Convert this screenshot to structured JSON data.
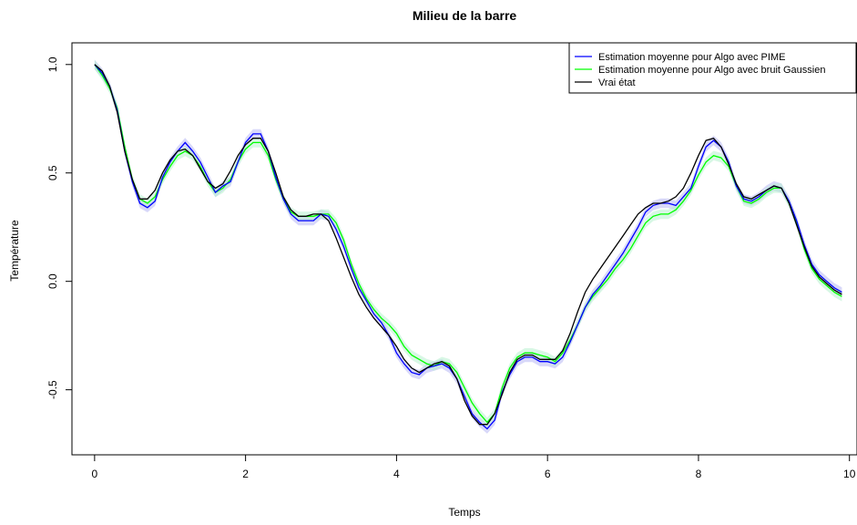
{
  "chart_data": {
    "type": "line",
    "title": "Milieu de la barre",
    "xlabel": "Temps",
    "ylabel": "Température",
    "xlim": [
      -0.3,
      10.1
    ],
    "ylim": [
      -0.8,
      1.1
    ],
    "xticks": [
      0,
      2,
      4,
      6,
      8,
      10
    ],
    "yticks": [
      -0.5,
      0.0,
      0.5,
      1.0
    ],
    "xtick_labels": [
      "0",
      "2",
      "4",
      "6",
      "8",
      "10"
    ],
    "ytick_labels": [
      "-0.5",
      "0.0",
      "0.5",
      "1.0"
    ],
    "grid": false,
    "legend_position": "top-right",
    "x": [
      0,
      0.1,
      0.2,
      0.3,
      0.4,
      0.5,
      0.6,
      0.7,
      0.8,
      0.9,
      1.0,
      1.1,
      1.2,
      1.3,
      1.4,
      1.5,
      1.6,
      1.7,
      1.8,
      1.9,
      2.0,
      2.1,
      2.2,
      2.3,
      2.4,
      2.5,
      2.6,
      2.7,
      2.8,
      2.9,
      3.0,
      3.1,
      3.2,
      3.3,
      3.4,
      3.5,
      3.6,
      3.7,
      3.8,
      3.9,
      4.0,
      4.1,
      4.2,
      4.3,
      4.4,
      4.5,
      4.6,
      4.7,
      4.8,
      4.9,
      5.0,
      5.1,
      5.2,
      5.3,
      5.4,
      5.5,
      5.6,
      5.7,
      5.8,
      5.9,
      6.0,
      6.1,
      6.2,
      6.3,
      6.4,
      6.5,
      6.6,
      6.7,
      6.8,
      6.9,
      7.0,
      7.1,
      7.2,
      7.3,
      7.4,
      7.5,
      7.6,
      7.7,
      7.8,
      7.9,
      8.0,
      8.1,
      8.2,
      8.3,
      8.4,
      8.5,
      8.6,
      8.7,
      8.8,
      8.9,
      9.0,
      9.1,
      9.2,
      9.3,
      9.4,
      9.5,
      9.6,
      9.7,
      9.8,
      9.9
    ],
    "series": [
      {
        "name": "Estimation moyenne pour Algo avec PIME",
        "color": "#0000ff",
        "band_color": "#b8b8f4",
        "values": [
          1.0,
          0.96,
          0.9,
          0.79,
          0.6,
          0.46,
          0.36,
          0.34,
          0.37,
          0.48,
          0.55,
          0.6,
          0.64,
          0.6,
          0.55,
          0.48,
          0.41,
          0.44,
          0.46,
          0.55,
          0.64,
          0.68,
          0.68,
          0.6,
          0.48,
          0.38,
          0.31,
          0.28,
          0.28,
          0.28,
          0.31,
          0.3,
          0.24,
          0.16,
          0.06,
          -0.03,
          -0.09,
          -0.15,
          -0.19,
          -0.25,
          -0.33,
          -0.38,
          -0.42,
          -0.43,
          -0.4,
          -0.39,
          -0.38,
          -0.4,
          -0.45,
          -0.53,
          -0.61,
          -0.65,
          -0.68,
          -0.64,
          -0.51,
          -0.43,
          -0.37,
          -0.35,
          -0.35,
          -0.37,
          -0.37,
          -0.38,
          -0.35,
          -0.28,
          -0.2,
          -0.12,
          -0.06,
          -0.02,
          0.03,
          0.08,
          0.13,
          0.19,
          0.25,
          0.32,
          0.35,
          0.36,
          0.36,
          0.35,
          0.39,
          0.43,
          0.53,
          0.62,
          0.65,
          0.62,
          0.55,
          0.44,
          0.38,
          0.37,
          0.39,
          0.42,
          0.44,
          0.43,
          0.37,
          0.28,
          0.17,
          0.08,
          0.03,
          0.0,
          -0.03,
          -0.05
        ]
      },
      {
        "name": "Estimation moyenne pour Algo avec bruit Gaussien",
        "color": "#00ff00",
        "band_color": "#b8f0d0",
        "values": [
          1.0,
          0.95,
          0.89,
          0.8,
          0.62,
          0.47,
          0.38,
          0.36,
          0.39,
          0.47,
          0.53,
          0.58,
          0.6,
          0.58,
          0.53,
          0.46,
          0.41,
          0.43,
          0.47,
          0.55,
          0.61,
          0.64,
          0.64,
          0.58,
          0.47,
          0.38,
          0.32,
          0.3,
          0.3,
          0.3,
          0.31,
          0.31,
          0.27,
          0.19,
          0.08,
          -0.01,
          -0.08,
          -0.13,
          -0.17,
          -0.2,
          -0.24,
          -0.3,
          -0.34,
          -0.36,
          -0.38,
          -0.39,
          -0.37,
          -0.38,
          -0.42,
          -0.49,
          -0.56,
          -0.61,
          -0.65,
          -0.61,
          -0.49,
          -0.4,
          -0.35,
          -0.33,
          -0.33,
          -0.34,
          -0.35,
          -0.37,
          -0.33,
          -0.27,
          -0.2,
          -0.12,
          -0.07,
          -0.03,
          0.01,
          0.06,
          0.1,
          0.15,
          0.21,
          0.27,
          0.3,
          0.31,
          0.31,
          0.33,
          0.37,
          0.42,
          0.49,
          0.55,
          0.58,
          0.57,
          0.53,
          0.44,
          0.37,
          0.36,
          0.38,
          0.41,
          0.43,
          0.43,
          0.36,
          0.27,
          0.15,
          0.06,
          0.01,
          -0.02,
          -0.05,
          -0.07
        ]
      },
      {
        "name": "Vrai état",
        "color": "#000000",
        "values": [
          1.0,
          0.97,
          0.9,
          0.78,
          0.6,
          0.47,
          0.38,
          0.38,
          0.42,
          0.5,
          0.56,
          0.6,
          0.61,
          0.58,
          0.52,
          0.46,
          0.43,
          0.45,
          0.51,
          0.58,
          0.63,
          0.66,
          0.66,
          0.6,
          0.5,
          0.39,
          0.33,
          0.3,
          0.3,
          0.31,
          0.31,
          0.28,
          0.2,
          0.11,
          0.02,
          -0.06,
          -0.12,
          -0.17,
          -0.21,
          -0.25,
          -0.3,
          -0.36,
          -0.4,
          -0.42,
          -0.4,
          -0.38,
          -0.37,
          -0.39,
          -0.45,
          -0.55,
          -0.62,
          -0.66,
          -0.66,
          -0.61,
          -0.52,
          -0.42,
          -0.36,
          -0.34,
          -0.34,
          -0.36,
          -0.36,
          -0.36,
          -0.32,
          -0.24,
          -0.14,
          -0.05,
          0.01,
          0.06,
          0.11,
          0.16,
          0.21,
          0.26,
          0.31,
          0.34,
          0.36,
          0.36,
          0.37,
          0.39,
          0.43,
          0.5,
          0.58,
          0.65,
          0.66,
          0.62,
          0.54,
          0.45,
          0.39,
          0.38,
          0.4,
          0.42,
          0.44,
          0.43,
          0.36,
          0.26,
          0.16,
          0.07,
          0.02,
          -0.01,
          -0.04,
          -0.06
        ]
      }
    ]
  }
}
